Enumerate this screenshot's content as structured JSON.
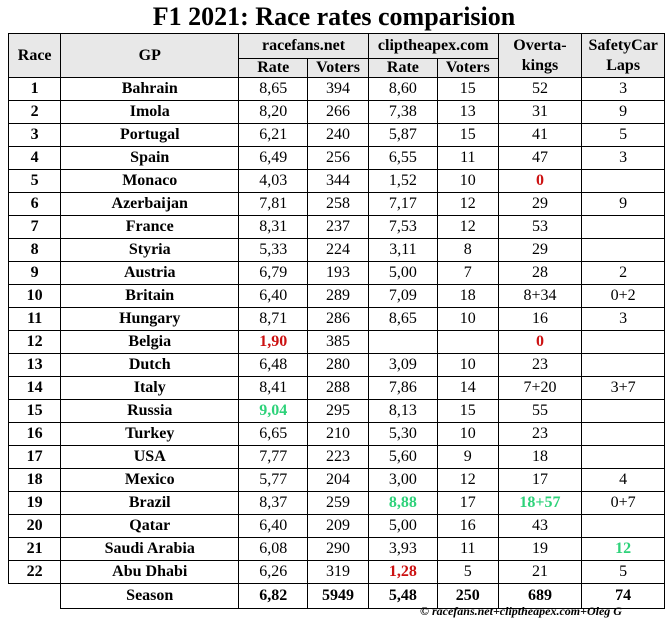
{
  "title": "F1 2021: Race rates comparision",
  "headers": {
    "race": "Race",
    "gp": "GP",
    "source1": "racefans.net",
    "source2": "cliptheapex.com",
    "overtakings": "Overta-\nkings",
    "safetycar": "SafetyCar\nLaps",
    "rate": "Rate",
    "voters": "Voters"
  },
  "rows": [
    {
      "race": "1",
      "gp": "Bahrain",
      "rf_rate": "8,65",
      "rf_voters": "394",
      "cta_rate": "8,60",
      "cta_voters": "15",
      "overtakes": "52",
      "sc": "3"
    },
    {
      "race": "2",
      "gp": "Imola",
      "rf_rate": "8,20",
      "rf_voters": "266",
      "cta_rate": "7,38",
      "cta_voters": "13",
      "overtakes": "31",
      "sc": "9"
    },
    {
      "race": "3",
      "gp": "Portugal",
      "rf_rate": "6,21",
      "rf_voters": "240",
      "cta_rate": "5,87",
      "cta_voters": "15",
      "overtakes": "41",
      "sc": "5"
    },
    {
      "race": "4",
      "gp": "Spain",
      "rf_rate": "6,49",
      "rf_voters": "256",
      "cta_rate": "6,55",
      "cta_voters": "11",
      "overtakes": "47",
      "sc": "3"
    },
    {
      "race": "5",
      "gp": "Monaco",
      "rf_rate": "4,03",
      "rf_voters": "344",
      "cta_rate": "1,52",
      "cta_voters": "10",
      "overtakes": "0",
      "sc": ""
    },
    {
      "race": "6",
      "gp": "Azerbaijan",
      "rf_rate": "7,81",
      "rf_voters": "258",
      "cta_rate": "7,17",
      "cta_voters": "12",
      "overtakes": "29",
      "sc": "9"
    },
    {
      "race": "7",
      "gp": "France",
      "rf_rate": "8,31",
      "rf_voters": "237",
      "cta_rate": "7,53",
      "cta_voters": "12",
      "overtakes": "53",
      "sc": ""
    },
    {
      "race": "8",
      "gp": "Styria",
      "rf_rate": "5,33",
      "rf_voters": "224",
      "cta_rate": "3,11",
      "cta_voters": "8",
      "overtakes": "29",
      "sc": ""
    },
    {
      "race": "9",
      "gp": "Austria",
      "rf_rate": "6,79",
      "rf_voters": "193",
      "cta_rate": "5,00",
      "cta_voters": "7",
      "overtakes": "28",
      "sc": "2"
    },
    {
      "race": "10",
      "gp": "Britain",
      "rf_rate": "6,40",
      "rf_voters": "289",
      "cta_rate": "7,09",
      "cta_voters": "18",
      "overtakes": "8+34",
      "sc": "0+2"
    },
    {
      "race": "11",
      "gp": "Hungary",
      "rf_rate": "8,71",
      "rf_voters": "286",
      "cta_rate": "8,65",
      "cta_voters": "10",
      "overtakes": "16",
      "sc": "3"
    },
    {
      "race": "12",
      "gp": "Belgia",
      "rf_rate": "1,90",
      "rf_voters": "385",
      "cta_rate": "",
      "cta_voters": "",
      "overtakes": "0",
      "sc": ""
    },
    {
      "race": "13",
      "gp": "Dutch",
      "rf_rate": "6,48",
      "rf_voters": "280",
      "cta_rate": "3,09",
      "cta_voters": "10",
      "overtakes": "23",
      "sc": ""
    },
    {
      "race": "14",
      "gp": "Italy",
      "rf_rate": "8,41",
      "rf_voters": "288",
      "cta_rate": "7,86",
      "cta_voters": "14",
      "overtakes": "7+20",
      "sc": "3+7"
    },
    {
      "race": "15",
      "gp": "Russia",
      "rf_rate": "9,04",
      "rf_voters": "295",
      "cta_rate": "8,13",
      "cta_voters": "15",
      "overtakes": "55",
      "sc": ""
    },
    {
      "race": "16",
      "gp": "Turkey",
      "rf_rate": "6,65",
      "rf_voters": "210",
      "cta_rate": "5,30",
      "cta_voters": "10",
      "overtakes": "23",
      "sc": ""
    },
    {
      "race": "17",
      "gp": "USA",
      "rf_rate": "7,77",
      "rf_voters": "223",
      "cta_rate": "5,60",
      "cta_voters": "9",
      "overtakes": "18",
      "sc": ""
    },
    {
      "race": "18",
      "gp": "Mexico",
      "rf_rate": "5,77",
      "rf_voters": "204",
      "cta_rate": "3,00",
      "cta_voters": "12",
      "overtakes": "17",
      "sc": "4"
    },
    {
      "race": "19",
      "gp": "Brazil",
      "rf_rate": "8,37",
      "rf_voters": "259",
      "cta_rate": "8,88",
      "cta_voters": "17",
      "overtakes": "18+57",
      "sc": "0+7"
    },
    {
      "race": "20",
      "gp": "Qatar",
      "rf_rate": "6,40",
      "rf_voters": "209",
      "cta_rate": "5,00",
      "cta_voters": "16",
      "overtakes": "43",
      "sc": ""
    },
    {
      "race": "21",
      "gp": "Saudi Arabia",
      "rf_rate": "6,08",
      "rf_voters": "290",
      "cta_rate": "3,93",
      "cta_voters": "11",
      "overtakes": "19",
      "sc": "12"
    },
    {
      "race": "22",
      "gp": "Abu Dhabi",
      "rf_rate": "6,26",
      "rf_voters": "319",
      "cta_rate": "1,28",
      "cta_voters": "5",
      "overtakes": "21",
      "sc": "5"
    }
  ],
  "highlights": {
    "red": "#cc1111",
    "green": "#2ed27a",
    "cells": [
      {
        "row": 4,
        "col": "overtakes",
        "color": "red"
      },
      {
        "row": 11,
        "col": "rf_rate",
        "color": "red"
      },
      {
        "row": 11,
        "col": "overtakes",
        "color": "red"
      },
      {
        "row": 14,
        "col": "rf_rate",
        "color": "green"
      },
      {
        "row": 18,
        "col": "cta_rate",
        "color": "green"
      },
      {
        "row": 18,
        "col": "overtakes",
        "color": "green"
      },
      {
        "row": 20,
        "col": "sc",
        "color": "green"
      },
      {
        "row": 21,
        "col": "cta_rate",
        "color": "red"
      }
    ]
  },
  "season": {
    "label": "Season",
    "rf_rate": "6,82",
    "rf_voters": "5949",
    "cta_rate": "5,48",
    "cta_voters": "250",
    "overtakes": "689",
    "sc": "74"
  },
  "footer": "© racefans.net+cliptheapex.com+Oleg G"
}
